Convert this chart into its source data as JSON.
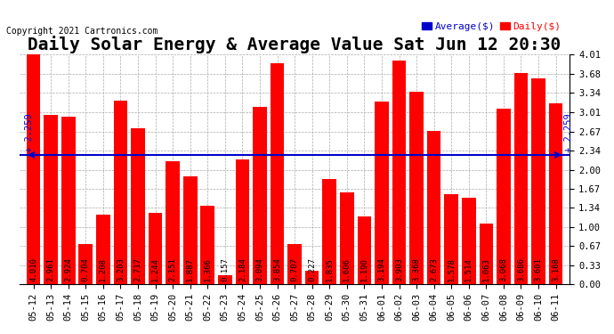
{
  "title": "Daily Solar Energy & Average Value Sat Jun 12 20:30",
  "copyright": "Copyright 2021 Cartronics.com",
  "legend_avg": "Average($)",
  "legend_daily": "Daily($)",
  "average_value": 2.259,
  "categories": [
    "05-12",
    "05-13",
    "05-14",
    "05-15",
    "05-16",
    "05-17",
    "05-18",
    "05-19",
    "05-20",
    "05-21",
    "05-22",
    "05-23",
    "05-24",
    "05-25",
    "05-26",
    "05-27",
    "05-28",
    "05-29",
    "05-30",
    "05-31",
    "06-01",
    "06-02",
    "06-03",
    "06-04",
    "06-05",
    "06-06",
    "06-07",
    "06-08",
    "06-09",
    "06-10",
    "06-11"
  ],
  "values": [
    4.01,
    2.961,
    2.924,
    0.704,
    1.208,
    3.203,
    2.717,
    1.244,
    2.151,
    1.887,
    1.366,
    0.157,
    2.184,
    3.094,
    3.854,
    0.707,
    0.227,
    1.835,
    1.606,
    1.19,
    3.194,
    3.903,
    3.368,
    2.673,
    1.578,
    1.514,
    1.063,
    3.068,
    3.686,
    3.601,
    3.168
  ],
  "bar_color": "#ff0000",
  "avg_line_color": "#0000cc",
  "label_color_normal": "#ffffff",
  "label_color_dark": "#ffffff",
  "ylim": [
    0.0,
    4.01
  ],
  "yticks": [
    0.0,
    0.33,
    0.67,
    1.0,
    1.34,
    1.67,
    2.0,
    2.34,
    2.67,
    3.01,
    3.34,
    3.68,
    4.01
  ],
  "background_color": "#ffffff",
  "grid_color": "#aaaaaa",
  "title_fontsize": 14,
  "tick_fontsize": 7.5,
  "bar_label_fontsize": 6.5,
  "avg_label_fontsize": 7.5
}
